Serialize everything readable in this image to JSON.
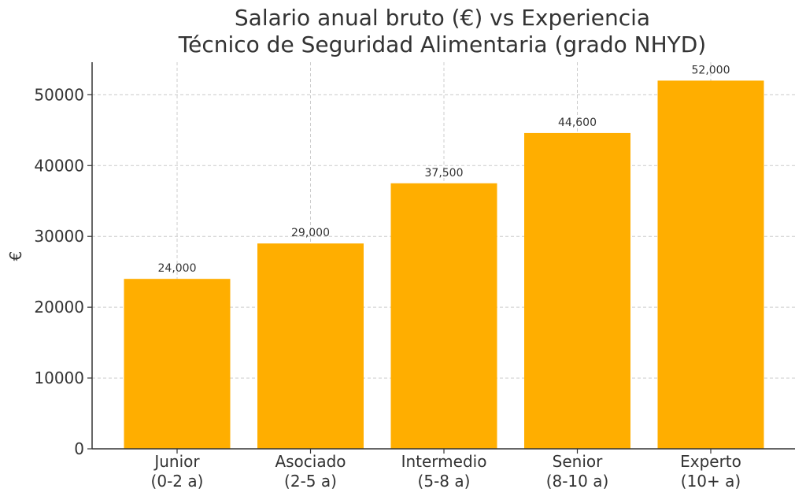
{
  "chart_data": {
    "type": "bar",
    "title": "Salario anual bruto (€) vs Experiencia",
    "subtitle": "Técnico de Seguridad Alimentaria (grado NHYD)",
    "xlabel": "",
    "ylabel": "€",
    "categories": [
      [
        "Junior",
        "(0-2 a)"
      ],
      [
        "Asociado",
        "(2-5 a)"
      ],
      [
        "Intermedio",
        "(5-8 a)"
      ],
      [
        "Senior",
        "(8-10 a)"
      ],
      [
        "Experto",
        "(10+ a)"
      ]
    ],
    "values": [
      24000,
      29000,
      37500,
      44600,
      52000
    ],
    "value_labels": [
      "24,000",
      "29,000",
      "37,500",
      "44,600",
      "52,000"
    ],
    "yticks": [
      0,
      10000,
      20000,
      30000,
      40000,
      50000
    ],
    "ylim": [
      0,
      54600
    ],
    "grid": true,
    "colors": {
      "bar": "#FFAE00",
      "grid": "#cccccc",
      "axis": "#333333",
      "text": "#333333"
    }
  }
}
